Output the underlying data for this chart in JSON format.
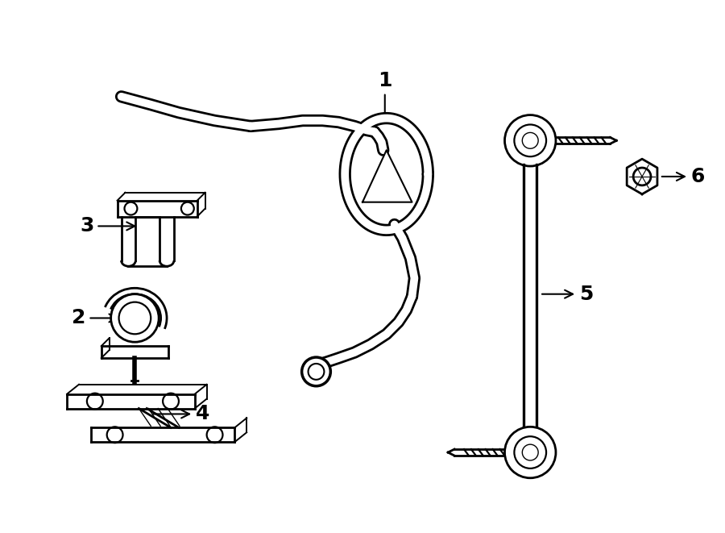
{
  "bg_color": "#ffffff",
  "line_color": "#000000",
  "lw": 2.0,
  "fig_width": 9.0,
  "fig_height": 6.61,
  "dpi": 100
}
